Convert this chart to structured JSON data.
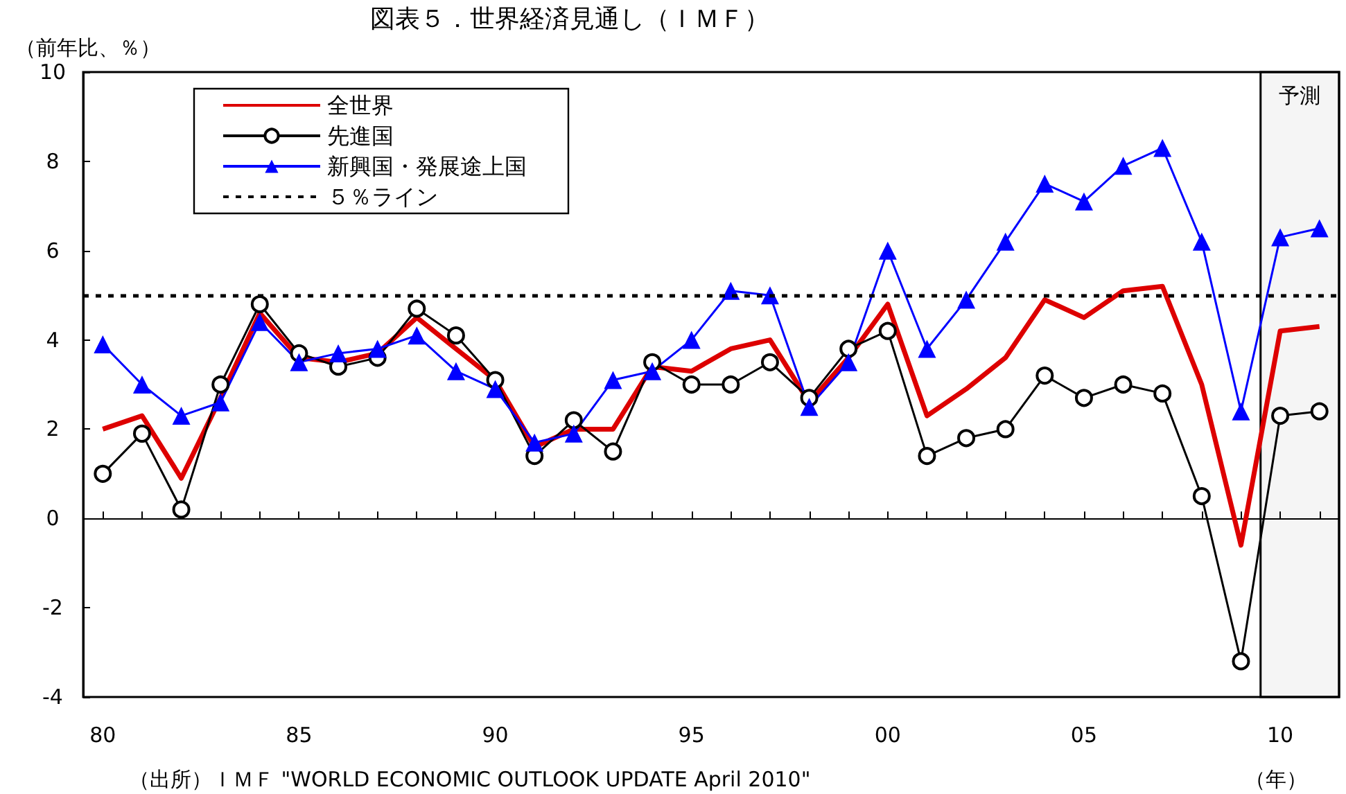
{
  "chart_data": {
    "type": "line",
    "title": "図表５．世界経済見通し（ＩＭＦ）",
    "ylabel": "（前年比、％）",
    "xlabel": "（年）",
    "annotations": [
      "（出所）ＩＭＦ \"WORLD ECONOMIC OUTLOOK UPDATE April 2010\""
    ],
    "x": [
      1980,
      1981,
      1982,
      1983,
      1984,
      1985,
      1986,
      1987,
      1988,
      1989,
      1990,
      1991,
      1992,
      1993,
      1994,
      1995,
      1996,
      1997,
      1998,
      1999,
      2000,
      2001,
      2002,
      2003,
      2004,
      2005,
      2006,
      2007,
      2008,
      2009,
      2010,
      2011
    ],
    "series": [
      {
        "name": "全世界",
        "color": "#dd0000",
        "marker": "none",
        "values": [
          2.0,
          2.3,
          0.9,
          2.7,
          4.6,
          3.6,
          3.5,
          3.7,
          4.5,
          3.8,
          3.1,
          1.6,
          2.0,
          2.0,
          3.4,
          3.3,
          3.8,
          4.0,
          2.6,
          3.6,
          4.8,
          2.3,
          2.9,
          3.6,
          4.9,
          4.5,
          5.1,
          5.2,
          3.0,
          -0.6,
          4.2,
          4.3
        ]
      },
      {
        "name": "先進国",
        "color": "#000000",
        "marker": "circle",
        "values": [
          1.0,
          1.9,
          0.2,
          3.0,
          4.8,
          3.7,
          3.4,
          3.6,
          4.7,
          4.1,
          3.1,
          1.4,
          2.2,
          1.5,
          3.5,
          3.0,
          3.0,
          3.5,
          2.7,
          3.8,
          4.2,
          1.4,
          1.8,
          2.0,
          3.2,
          2.7,
          3.0,
          2.8,
          0.5,
          -3.2,
          2.3,
          2.4
        ]
      },
      {
        "name": "新興国・発展途上国",
        "color": "#0000ff",
        "marker": "triangle",
        "values": [
          3.9,
          3.0,
          2.3,
          2.6,
          4.4,
          3.5,
          3.7,
          3.8,
          4.1,
          3.3,
          2.9,
          1.7,
          1.9,
          3.1,
          3.3,
          4.0,
          5.1,
          5.0,
          2.5,
          3.5,
          6.0,
          3.8,
          4.9,
          6.2,
          7.5,
          7.1,
          7.9,
          8.3,
          6.2,
          2.4,
          6.3,
          6.5
        ]
      }
    ],
    "xlim": [
      1979.5,
      2011.5
    ],
    "xticks": [
      {
        "value": 1980,
        "label": "80"
      },
      {
        "value": 1981,
        "label": null
      },
      {
        "value": 1982,
        "label": null
      },
      {
        "value": 1983,
        "label": null
      },
      {
        "value": 1984,
        "label": null
      },
      {
        "value": 1985,
        "label": "85"
      },
      {
        "value": 1986,
        "label": null
      },
      {
        "value": 1987,
        "label": null
      },
      {
        "value": 1988,
        "label": null
      },
      {
        "value": 1989,
        "label": null
      },
      {
        "value": 1990,
        "label": "90"
      },
      {
        "value": 1991,
        "label": null
      },
      {
        "value": 1992,
        "label": null
      },
      {
        "value": 1993,
        "label": null
      },
      {
        "value": 1994,
        "label": null
      },
      {
        "value": 1995,
        "label": "95"
      },
      {
        "value": 1996,
        "label": null
      },
      {
        "value": 1997,
        "label": null
      },
      {
        "value": 1998,
        "label": null
      },
      {
        "value": 1999,
        "label": null
      },
      {
        "value": 2000,
        "label": "00"
      },
      {
        "value": 2001,
        "label": null
      },
      {
        "value": 2002,
        "label": null
      },
      {
        "value": 2003,
        "label": null
      },
      {
        "value": 2004,
        "label": null
      },
      {
        "value": 2005,
        "label": "05"
      },
      {
        "value": 2006,
        "label": null
      },
      {
        "value": 2007,
        "label": null
      },
      {
        "value": 2008,
        "label": null
      },
      {
        "value": 2009,
        "label": null
      },
      {
        "value": 2010,
        "label": "10"
      },
      {
        "value": 2011,
        "label": null
      }
    ],
    "ylim": [
      -4,
      10
    ],
    "yticks": [
      -4,
      -2,
      0,
      2,
      4,
      6,
      8,
      10
    ],
    "ref_lines": [
      {
        "axis": "y",
        "value": 5,
        "label": "５％ライン",
        "color": "#000000",
        "line_style": "dotted"
      }
    ],
    "bands": [
      {
        "axis": "x",
        "from": 2009.5,
        "to": 2011.5,
        "label": "予測"
      }
    ],
    "legend": "top left"
  }
}
